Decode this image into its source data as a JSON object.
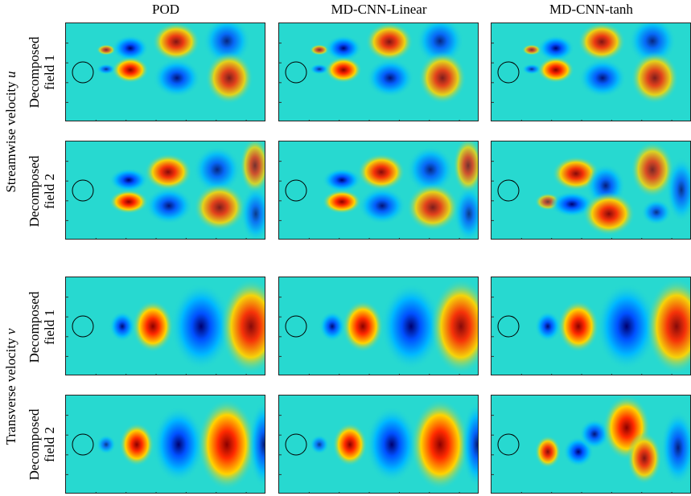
{
  "columns": [
    "POD",
    "MD-CNN-Linear",
    "MD-CNN-tanh"
  ],
  "groups": [
    {
      "label_prefix": "Streamwise velocity",
      "symbol": "u",
      "rows": [
        "Decomposed\nfield 1",
        "Decomposed\nfield 2"
      ]
    },
    {
      "label_prefix": "Transverse velocity",
      "symbol": "v",
      "rows": [
        "Decomposed\nfield 1",
        "Decomposed\nfield 2"
      ]
    }
  ],
  "colors": {
    "background": "#27d9d0",
    "positive_strong": "#8b0000",
    "positive": "#ff2a00",
    "positive_weak": "#ffd400",
    "negative_strong": "#00006f",
    "negative": "#0050ff",
    "negative_weak": "#00b8ff",
    "panel_border": "#222222",
    "cylinder_stroke": "#000000"
  },
  "chart_data": {
    "type": "heatmap",
    "colormap": "jet",
    "grid": "3 columns x 4 rows of decomposed flow-field panels",
    "cylinder": "circle near left edge, vertically centered"
  }
}
